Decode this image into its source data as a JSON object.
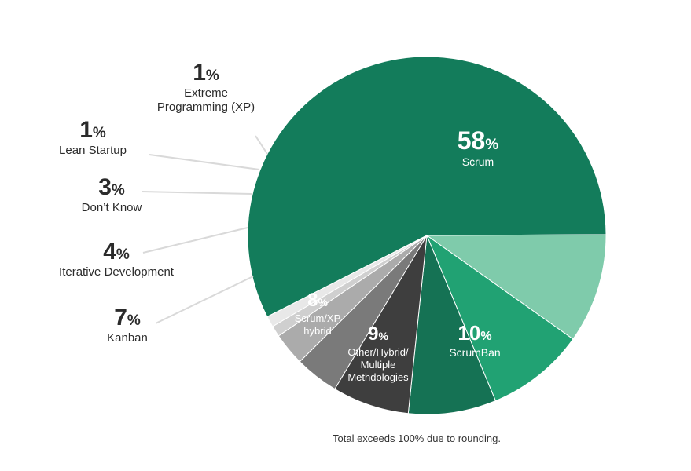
{
  "chart_data": {
    "type": "pie",
    "title": "",
    "footnote": "Total exceeds 100% due to rounding.",
    "slices": [
      {
        "label": "Scrum",
        "label_lines": [
          "Scrum"
        ],
        "value": 58,
        "pct": "%",
        "color": "#137c5b",
        "text_color": "#ffffff",
        "placement": "inside"
      },
      {
        "label": "ScrumBan",
        "label_lines": [
          "ScrumBan"
        ],
        "value": 10,
        "pct": "%",
        "color": "#7fcbab",
        "text_color": "#ffffff",
        "placement": "inside"
      },
      {
        "label": "Other/Hybrid/Multiple Methdologies",
        "label_lines": [
          "Other/Hybrid/",
          "Multiple",
          "Methdologies"
        ],
        "value": 9,
        "pct": "%",
        "color": "#21a273",
        "text_color": "#ffffff",
        "placement": "inside"
      },
      {
        "label": "Scrum/XP hybrid",
        "label_lines": [
          "Scrum/XP",
          "hybrid"
        ],
        "value": 8,
        "pct": "%",
        "color": "#157254",
        "text_color": "#ffffff",
        "placement": "inside"
      },
      {
        "label": "Kanban",
        "label_lines": [
          "Kanban"
        ],
        "value": 7,
        "pct": "%",
        "color": "#3e3e3e",
        "text_color": "#2b2b2b",
        "placement": "outside"
      },
      {
        "label": "Iterative Development",
        "label_lines": [
          "Iterative Development"
        ],
        "value": 4,
        "pct": "%",
        "color": "#7a7a7a",
        "text_color": "#2b2b2b",
        "placement": "outside"
      },
      {
        "label": "Don't Know",
        "label_lines": [
          "Don’t Know"
        ],
        "value": 3,
        "pct": "%",
        "color": "#ababab",
        "text_color": "#2b2b2b",
        "placement": "outside"
      },
      {
        "label": "Lean Startup",
        "label_lines": [
          "Lean Startup"
        ],
        "value": 1,
        "pct": "%",
        "color": "#cfcfcf",
        "text_color": "#2b2b2b",
        "placement": "outside"
      },
      {
        "label": "Extreme Programming (XP)",
        "label_lines": [
          "Extreme",
          "Programming (XP)"
        ],
        "value": 1,
        "pct": "%",
        "color": "#e8e8e8",
        "text_color": "#2b2b2b",
        "placement": "outside"
      }
    ]
  }
}
